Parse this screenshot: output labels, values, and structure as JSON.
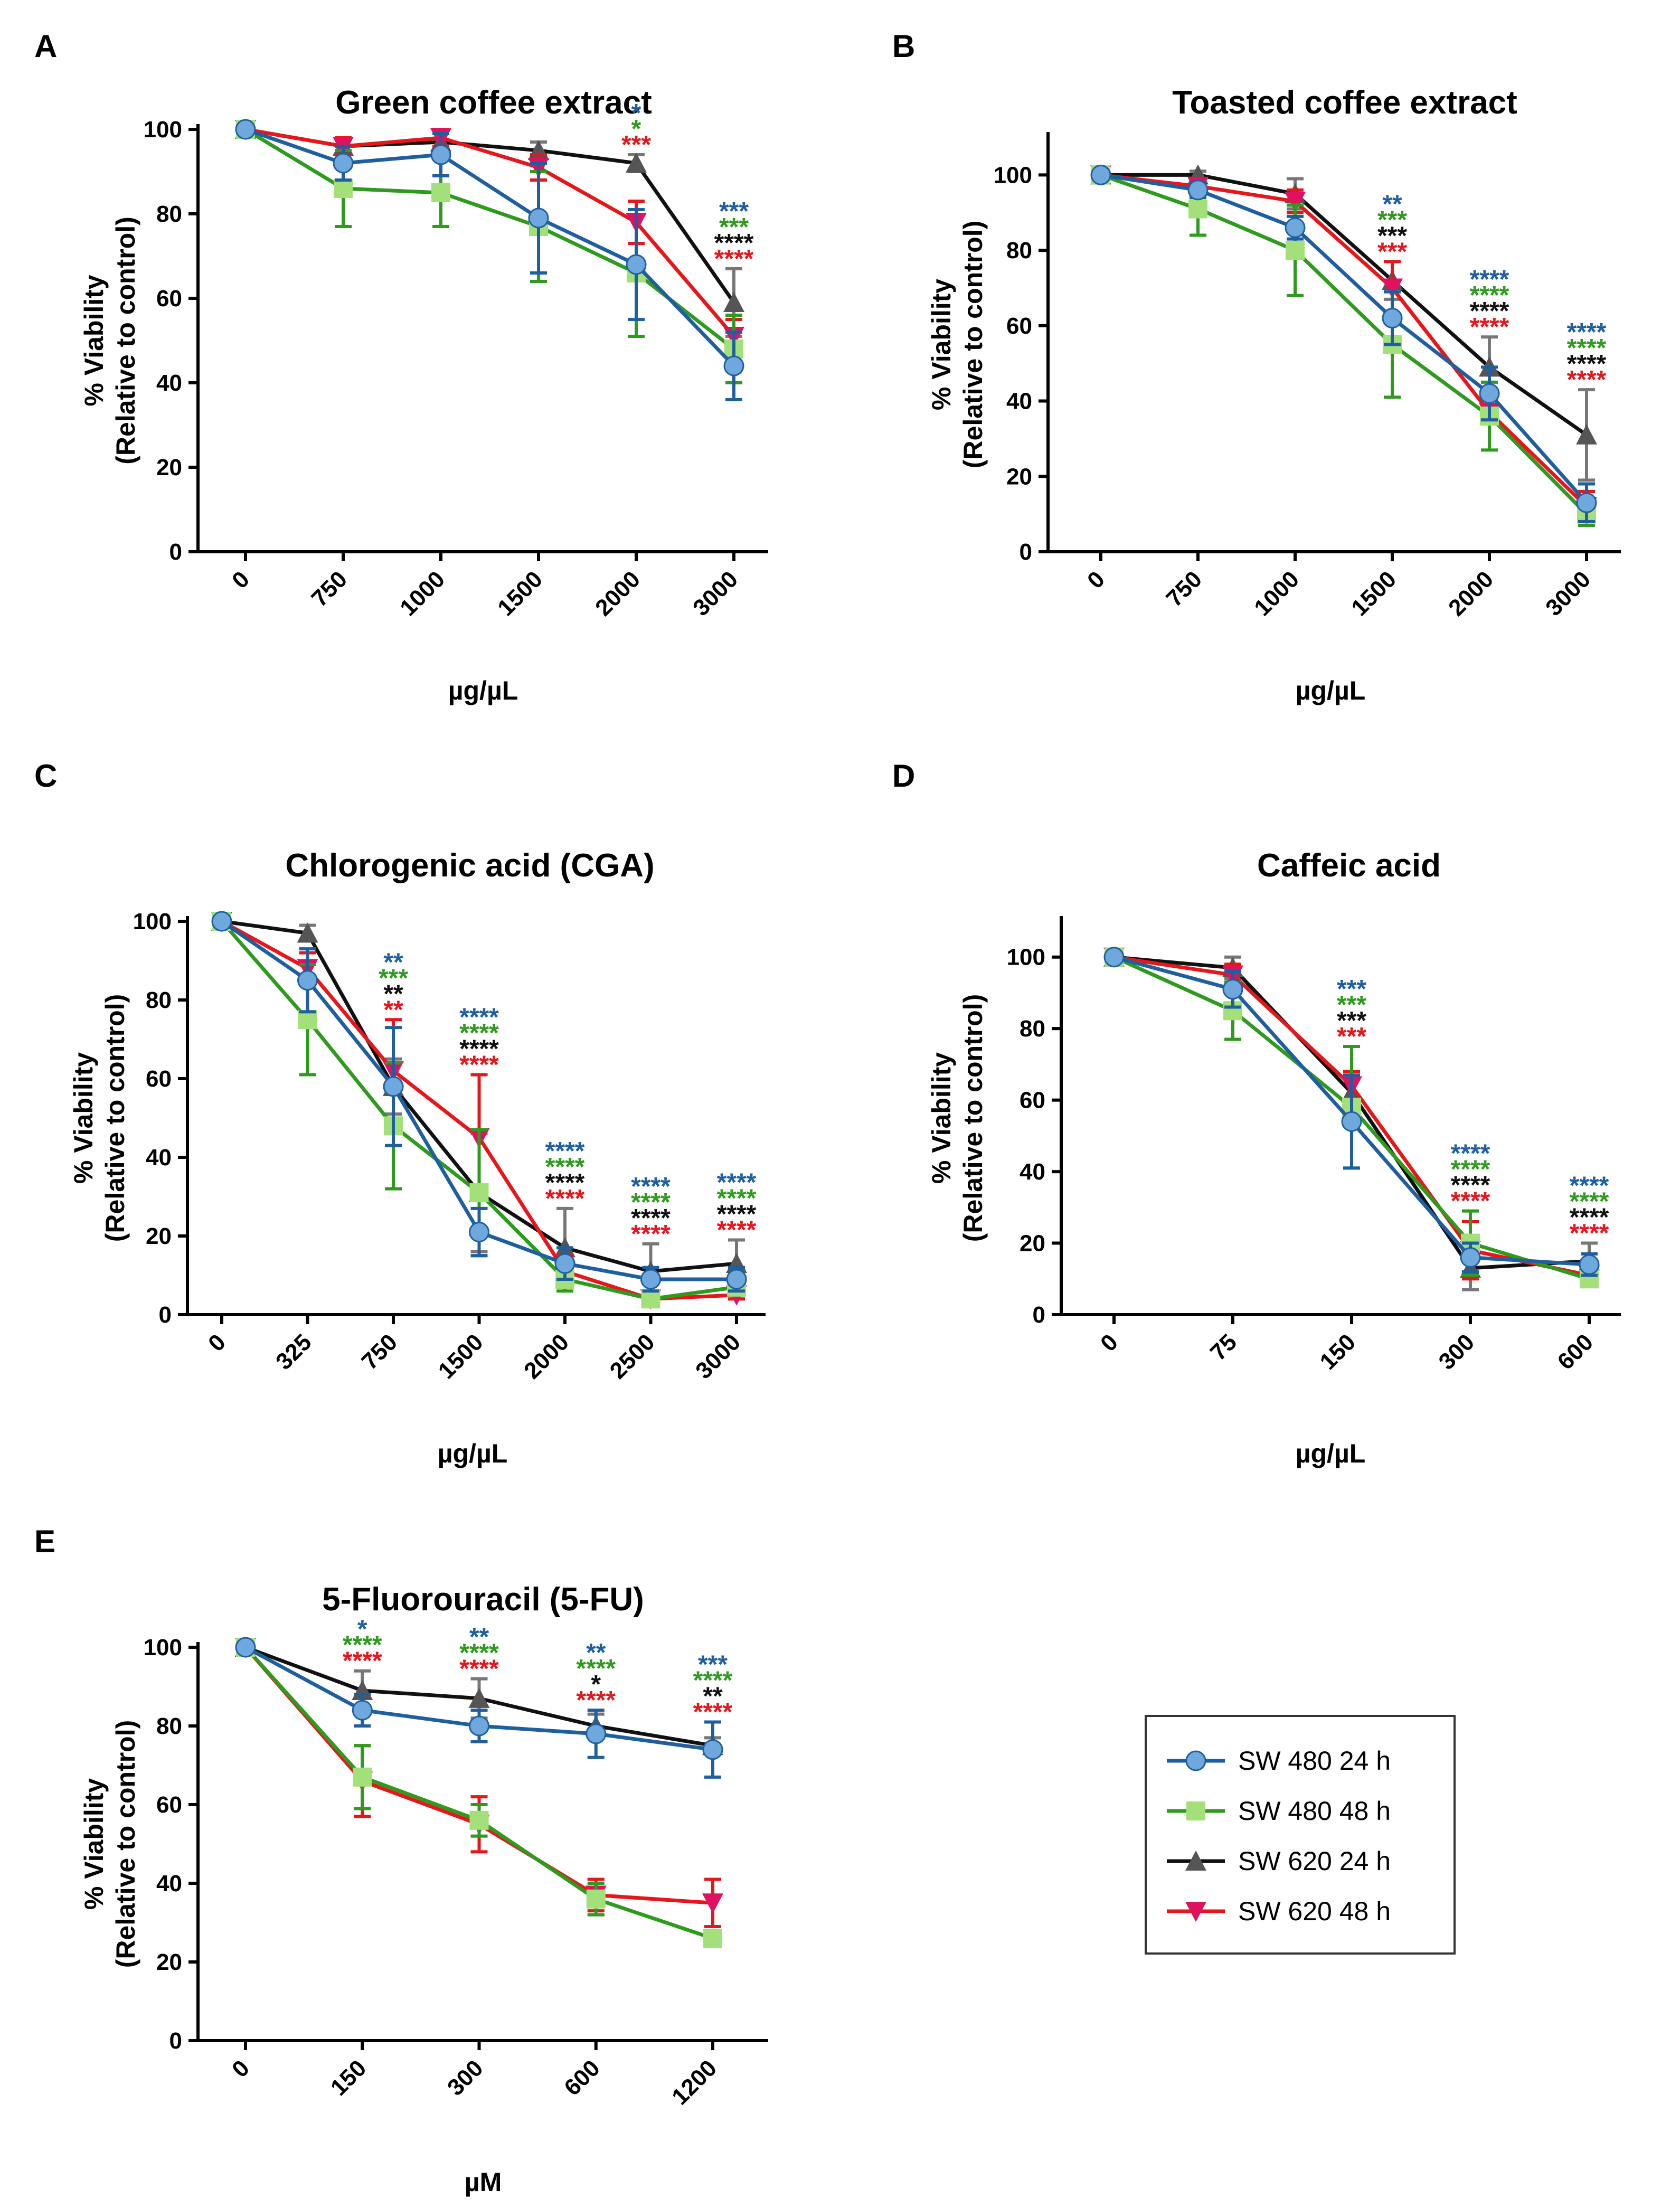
{
  "series_styles": [
    {
      "name": "SW 480 24 h",
      "line": "#1f5fa0",
      "marker": "#6fa8dc",
      "shape": "circle"
    },
    {
      "name": "SW 480 48 h",
      "line": "#2e9a1e",
      "marker": "#a3e07a",
      "shape": "square"
    },
    {
      "name": "SW 620 24 h",
      "line": "#111111",
      "marker": "#555555",
      "shape": "triangle-up"
    },
    {
      "name": "SW 620 48 h",
      "line": "#e8161b",
      "marker": "#e0115f",
      "shape": "triangle-down"
    }
  ],
  "chart_data": [
    {
      "panel": "A",
      "type": "line",
      "title": "Green coffee extract",
      "xlabel": "µg/µL",
      "ylabel": "% Viability",
      "ylabel2": "(Relative to control)",
      "categories": [
        "0",
        "750",
        "1000",
        "1500",
        "2000",
        "3000"
      ],
      "y_ticks": [
        0,
        20,
        40,
        60,
        80,
        100
      ],
      "ylim": [
        0,
        100
      ],
      "series": [
        {
          "name": "SW 480 24 h",
          "values": [
            100,
            92,
            94,
            79,
            68,
            44
          ],
          "errors": [
            0,
            4,
            5,
            13,
            13,
            8
          ]
        },
        {
          "name": "SW 480 48 h",
          "values": [
            100,
            86,
            85,
            77,
            66,
            48
          ],
          "errors": [
            0,
            9,
            8,
            13,
            15,
            8
          ]
        },
        {
          "name": "SW 620 24 h",
          "values": [
            100,
            96,
            97,
            95,
            92,
            59
          ],
          "errors": [
            0,
            2,
            2,
            2,
            2,
            8
          ]
        },
        {
          "name": "SW 620 48 h",
          "values": [
            100,
            96,
            98,
            91,
            78,
            51
          ],
          "errors": [
            0,
            2,
            2,
            3,
            5,
            4
          ]
        }
      ],
      "annotations": [
        {
          "category": "2000",
          "lines": [
            {
              "text": "*",
              "series": 0
            },
            {
              "text": "*",
              "series": 1
            },
            {
              "text": "***",
              "series": 3
            }
          ]
        },
        {
          "category": "3000",
          "lines": [
            {
              "text": "***",
              "series": 0
            },
            {
              "text": "***",
              "series": 1
            },
            {
              "text": "****",
              "series": 2
            },
            {
              "text": "****",
              "series": 3
            }
          ]
        }
      ]
    },
    {
      "panel": "B",
      "type": "line",
      "title": "Toasted coffee extract",
      "xlabel": "µg/µL",
      "ylabel": "% Viability",
      "ylabel2": "(Relative to control)",
      "categories": [
        "0",
        "750",
        "1000",
        "1500",
        "2000",
        "3000"
      ],
      "y_ticks": [
        0,
        20,
        40,
        60,
        80,
        100
      ],
      "ylim": [
        0,
        110
      ],
      "series": [
        {
          "name": "SW 480 24 h",
          "values": [
            100,
            96,
            86,
            62,
            42,
            13
          ],
          "errors": [
            0,
            2,
            3,
            7,
            7,
            5
          ]
        },
        {
          "name": "SW 480 48 h",
          "values": [
            100,
            91,
            80,
            55,
            36,
            10
          ],
          "errors": [
            0,
            7,
            12,
            14,
            9,
            3
          ]
        },
        {
          "name": "SW 620 24 h",
          "values": [
            100,
            100,
            95,
            72,
            49,
            31
          ],
          "errors": [
            0,
            1,
            4,
            5,
            8,
            12
          ]
        },
        {
          "name": "SW 620 48 h",
          "values": [
            100,
            97,
            93,
            70,
            37,
            12
          ],
          "errors": [
            0,
            2,
            3,
            7,
            3,
            4
          ]
        }
      ],
      "annotations": [
        {
          "category": "1500",
          "lines": [
            {
              "text": "**",
              "series": 0
            },
            {
              "text": "***",
              "series": 1
            },
            {
              "text": "***",
              "series": 2
            },
            {
              "text": "***",
              "series": 3
            }
          ]
        },
        {
          "category": "2000",
          "lines": [
            {
              "text": "****",
              "series": 0
            },
            {
              "text": "****",
              "series": 1
            },
            {
              "text": "****",
              "series": 2
            },
            {
              "text": "****",
              "series": 3
            }
          ]
        },
        {
          "category": "3000",
          "lines": [
            {
              "text": "****",
              "series": 0
            },
            {
              "text": "****",
              "series": 1
            },
            {
              "text": "****",
              "series": 2
            },
            {
              "text": "****",
              "series": 3
            }
          ]
        }
      ]
    },
    {
      "panel": "C",
      "type": "line",
      "title": "Chlorogenic acid (CGA)",
      "xlabel": "µg/µL",
      "ylabel": "% Viability",
      "ylabel2": "(Relative to control)",
      "categories": [
        "0",
        "325",
        "750",
        "1500",
        "2000",
        "2500",
        "3000"
      ],
      "y_ticks": [
        0,
        20,
        40,
        60,
        80,
        100
      ],
      "ylim": [
        0,
        100
      ],
      "series": [
        {
          "name": "SW 480 24 h",
          "values": [
            100,
            85,
            58,
            21,
            13,
            9,
            9
          ],
          "errors": [
            0,
            8,
            15,
            6,
            4,
            3,
            3
          ]
        },
        {
          "name": "SW 480 48 h",
          "values": [
            100,
            75,
            48,
            31,
            9,
            4,
            7
          ],
          "errors": [
            0,
            14,
            16,
            16,
            3,
            1,
            2
          ]
        },
        {
          "name": "SW 620 24 h",
          "values": [
            100,
            97,
            58,
            31,
            17,
            11,
            13
          ],
          "errors": [
            0,
            2,
            7,
            15,
            10,
            7,
            6
          ]
        },
        {
          "name": "SW 620 48 h",
          "values": [
            100,
            88,
            62,
            45,
            11,
            4,
            5
          ],
          "errors": [
            0,
            4,
            13,
            16,
            4,
            1,
            1
          ]
        }
      ],
      "annotations": [
        {
          "category": "750",
          "lines": [
            {
              "text": "**",
              "series": 0
            },
            {
              "text": "***",
              "series": 1
            },
            {
              "text": "**",
              "series": 2
            },
            {
              "text": "**",
              "series": 3
            }
          ]
        },
        {
          "category": "1500",
          "lines": [
            {
              "text": "****",
              "series": 0
            },
            {
              "text": "****",
              "series": 1
            },
            {
              "text": "****",
              "series": 2
            },
            {
              "text": "****",
              "series": 3
            }
          ]
        },
        {
          "category": "2000",
          "lines": [
            {
              "text": "****",
              "series": 0
            },
            {
              "text": "****",
              "series": 1
            },
            {
              "text": "****",
              "series": 2
            },
            {
              "text": "****",
              "series": 3
            }
          ]
        },
        {
          "category": "2500",
          "lines": [
            {
              "text": "****",
              "series": 0
            },
            {
              "text": "****",
              "series": 1
            },
            {
              "text": "****",
              "series": 2
            },
            {
              "text": "****",
              "series": 3
            }
          ]
        },
        {
          "category": "3000",
          "lines": [
            {
              "text": "****",
              "series": 0
            },
            {
              "text": "****",
              "series": 1
            },
            {
              "text": "****",
              "series": 2
            },
            {
              "text": "****",
              "series": 3
            }
          ]
        }
      ]
    },
    {
      "panel": "D",
      "type": "line",
      "title": "Caffeic acid",
      "xlabel": "µg/µL",
      "ylabel": "% Viability",
      "ylabel2": "(Relative to control)",
      "categories": [
        "0",
        "75",
        "150",
        "300",
        "600"
      ],
      "y_ticks": [
        0,
        20,
        40,
        60,
        80,
        100
      ],
      "ylim": [
        0,
        110
      ],
      "series": [
        {
          "name": "SW 480 24 h",
          "values": [
            100,
            91,
            54,
            16,
            14
          ],
          "errors": [
            0,
            5,
            13,
            4,
            3
          ]
        },
        {
          "name": "SW 480 48 h",
          "values": [
            100,
            85,
            58,
            20,
            10
          ],
          "errors": [
            0,
            8,
            17,
            9,
            2
          ]
        },
        {
          "name": "SW 620 24 h",
          "values": [
            100,
            97,
            62,
            13,
            15
          ],
          "errors": [
            0,
            3,
            6,
            6,
            5
          ]
        },
        {
          "name": "SW 620 48 h",
          "values": [
            100,
            95,
            64,
            18,
            11
          ],
          "errors": [
            0,
            3,
            4,
            8,
            3
          ]
        }
      ],
      "annotations": [
        {
          "category": "150",
          "lines": [
            {
              "text": "***",
              "series": 0
            },
            {
              "text": "***",
              "series": 1
            },
            {
              "text": "***",
              "series": 2
            },
            {
              "text": "***",
              "series": 3
            }
          ]
        },
        {
          "category": "300",
          "lines": [
            {
              "text": "****",
              "series": 0
            },
            {
              "text": "****",
              "series": 1
            },
            {
              "text": "****",
              "series": 2
            },
            {
              "text": "****",
              "series": 3
            }
          ]
        },
        {
          "category": "600",
          "lines": [
            {
              "text": "****",
              "series": 0
            },
            {
              "text": "****",
              "series": 1
            },
            {
              "text": "****",
              "series": 2
            },
            {
              "text": "****",
              "series": 3
            }
          ]
        }
      ]
    },
    {
      "panel": "E",
      "type": "line",
      "title": "5-Fluorouracil (5-FU)",
      "xlabel": "µM",
      "ylabel": "% Viability",
      "ylabel2": "(Relative to control)",
      "categories": [
        "0",
        "150",
        "300",
        "600",
        "1200"
      ],
      "y_ticks": [
        0,
        20,
        40,
        60,
        80,
        100
      ],
      "ylim": [
        0,
        100
      ],
      "series": [
        {
          "name": "SW 480 24 h",
          "values": [
            100,
            84,
            80,
            78,
            74
          ],
          "errors": [
            0,
            4,
            4,
            6,
            7
          ]
        },
        {
          "name": "SW 480 48 h",
          "values": [
            100,
            67,
            56,
            36,
            26
          ],
          "errors": [
            0,
            8,
            4,
            4,
            2
          ]
        },
        {
          "name": "SW 620 24 h",
          "values": [
            100,
            89,
            87,
            80,
            75
          ],
          "errors": [
            0,
            5,
            5,
            3,
            2
          ]
        },
        {
          "name": "SW 620 48 h",
          "values": [
            100,
            66,
            55,
            37,
            35
          ],
          "errors": [
            0,
            9,
            7,
            4,
            6
          ]
        }
      ],
      "annotations": [
        {
          "category": "150",
          "lines": [
            {
              "text": "*",
              "series": 0
            },
            {
              "text": "****",
              "series": 1
            },
            {
              "text": "****",
              "series": 3
            }
          ]
        },
        {
          "category": "300",
          "lines": [
            {
              "text": "**",
              "series": 0
            },
            {
              "text": "****",
              "series": 1
            },
            {
              "text": "****",
              "series": 3
            }
          ]
        },
        {
          "category": "600",
          "lines": [
            {
              "text": "**",
              "series": 0
            },
            {
              "text": "****",
              "series": 1
            },
            {
              "text": "*",
              "series": 2
            },
            {
              "text": "****",
              "series": 3
            }
          ]
        },
        {
          "category": "1200",
          "lines": [
            {
              "text": "***",
              "series": 0
            },
            {
              "text": "****",
              "series": 1
            },
            {
              "text": "**",
              "series": 2
            },
            {
              "text": "****",
              "series": 3
            }
          ]
        }
      ]
    }
  ],
  "legend": {
    "entries": [
      "SW 480 24 h",
      "SW 480 48 h",
      "SW 620 24 h",
      "SW 620 48 h"
    ]
  }
}
